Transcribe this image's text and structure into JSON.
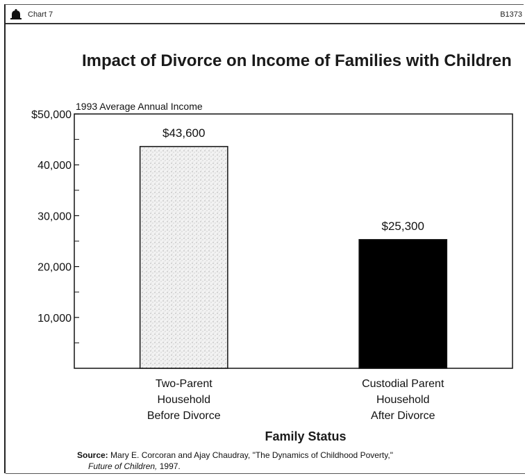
{
  "header": {
    "chart_number": "Chart 7",
    "doc_code": "B1373",
    "icon": "bell-icon"
  },
  "chart_data": {
    "type": "bar",
    "title": "Impact of Divorce on Income of Families with Children",
    "ylabel": "1993 Average Annual Income",
    "xlabel": "Family Status",
    "categories": [
      [
        "Two-Parent",
        "Household",
        "Before Divorce"
      ],
      [
        "Custodial Parent",
        "Household",
        "After Divorce"
      ]
    ],
    "values": [
      43600,
      25300
    ],
    "data_labels": [
      "$43,600",
      "$25,300"
    ],
    "ylim": [
      0,
      50000
    ],
    "yticks": [
      10000,
      20000,
      30000,
      40000,
      50000
    ],
    "ytick_labels": [
      "10,000",
      "20,000",
      "30,000",
      "40,000",
      "$50,000"
    ],
    "bar_colors": [
      "#e4e4e4",
      "#000000"
    ],
    "bar_styles": [
      "stippled",
      "solid"
    ],
    "grid": false,
    "legend": "none"
  },
  "source": {
    "label": "Source:",
    "text": "Mary E. Corcoran and Ajay Chaudray, \"The Dynamics of Childhood Poverty,\"",
    "journal": "Future of Children,",
    "year": "1997."
  }
}
